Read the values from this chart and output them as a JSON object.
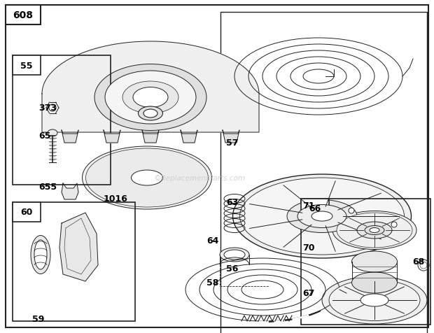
{
  "bg_color": "#ffffff",
  "line_color": "#222222",
  "watermark": "©ReplacementParts.com",
  "watermark_color": "#cccccc",
  "figsize": [
    6.2,
    4.77
  ],
  "dpi": 100
}
